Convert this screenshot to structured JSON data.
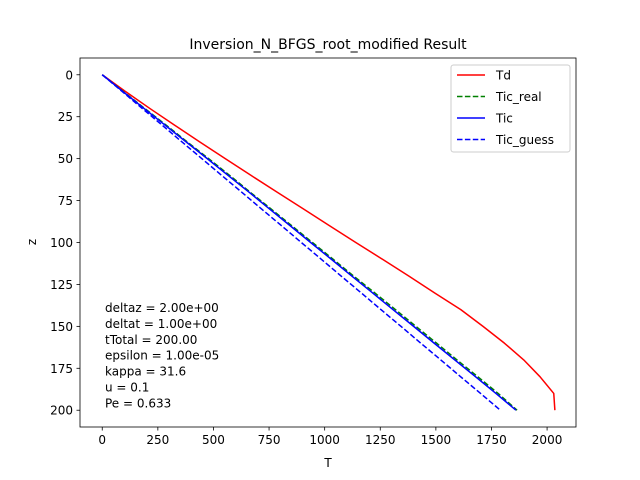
{
  "chart_data": {
    "type": "line",
    "title": "Inversion_N_BFGS_root_modified Result",
    "xlabel": "T",
    "ylabel": "z",
    "xlim": [
      -100,
      2130
    ],
    "ylim": [
      210,
      -10
    ],
    "y_inverted": true,
    "grid": false,
    "legend_position": "top-right",
    "x_ticks": [
      0,
      250,
      500,
      750,
      1000,
      1250,
      1500,
      1750,
      2000
    ],
    "y_ticks": [
      0,
      25,
      50,
      75,
      100,
      125,
      150,
      175,
      200
    ],
    "series": [
      {
        "name": "Td",
        "color": "#ff0000",
        "style": "solid",
        "points": [
          [
            0,
            0
          ],
          [
            105,
            10
          ],
          [
            213,
            20
          ],
          [
            325,
            30
          ],
          [
            438,
            40
          ],
          [
            553,
            50
          ],
          [
            669,
            60
          ],
          [
            786,
            70
          ],
          [
            905,
            80
          ],
          [
            1022,
            90
          ],
          [
            1140,
            100
          ],
          [
            1260,
            110
          ],
          [
            1378,
            120
          ],
          [
            1494,
            130
          ],
          [
            1612,
            140
          ],
          [
            1712,
            150
          ],
          [
            1808,
            160
          ],
          [
            1895,
            170
          ],
          [
            1968,
            180
          ],
          [
            2030,
            190
          ],
          [
            2035,
            200
          ]
        ]
      },
      {
        "name": "Tic_real",
        "color": "#008000",
        "style": "dashed",
        "points": [
          [
            0,
            0
          ],
          [
            95,
            10
          ],
          [
            190,
            20
          ],
          [
            287,
            30
          ],
          [
            382,
            40
          ],
          [
            478,
            50
          ],
          [
            573,
            60
          ],
          [
            665,
            70
          ],
          [
            759,
            80
          ],
          [
            852,
            90
          ],
          [
            945,
            100
          ],
          [
            1038,
            110
          ],
          [
            1130,
            120
          ],
          [
            1225,
            130
          ],
          [
            1318,
            140
          ],
          [
            1410,
            150
          ],
          [
            1503,
            160
          ],
          [
            1595,
            170
          ],
          [
            1688,
            180
          ],
          [
            1780,
            190
          ],
          [
            1865,
            200
          ]
        ]
      },
      {
        "name": "Tic",
        "color": "#0000ff",
        "style": "solid",
        "points": [
          [
            0,
            0
          ],
          [
            93,
            10
          ],
          [
            187,
            20
          ],
          [
            282,
            30
          ],
          [
            377,
            40
          ],
          [
            472,
            50
          ],
          [
            566,
            60
          ],
          [
            660,
            70
          ],
          [
            752,
            80
          ],
          [
            845,
            90
          ],
          [
            937,
            100
          ],
          [
            1030,
            110
          ],
          [
            1122,
            120
          ],
          [
            1215,
            130
          ],
          [
            1307,
            140
          ],
          [
            1400,
            150
          ],
          [
            1492,
            160
          ],
          [
            1585,
            170
          ],
          [
            1678,
            180
          ],
          [
            1770,
            190
          ],
          [
            1860,
            200
          ]
        ]
      },
      {
        "name": "Tic_guess",
        "color": "#0000ff",
        "style": "dashed",
        "points": [
          [
            0,
            0
          ],
          [
            90,
            10
          ],
          [
            179,
            20
          ],
          [
            269,
            30
          ],
          [
            358,
            40
          ],
          [
            448,
            50
          ],
          [
            537,
            60
          ],
          [
            627,
            70
          ],
          [
            716,
            80
          ],
          [
            806,
            90
          ],
          [
            895,
            100
          ],
          [
            985,
            110
          ],
          [
            1074,
            120
          ],
          [
            1164,
            130
          ],
          [
            1253,
            140
          ],
          [
            1343,
            150
          ],
          [
            1432,
            160
          ],
          [
            1522,
            170
          ],
          [
            1611,
            180
          ],
          [
            1701,
            190
          ],
          [
            1790,
            200
          ]
        ]
      }
    ],
    "annotations": [
      "deltaz = 2.00e+00",
      "deltat = 1.00e+00",
      "tTotal = 200.00",
      "epsilon = 1.00e-05",
      "kappa = 31.6",
      "u = 0.1",
      "Pe = 0.633"
    ]
  }
}
